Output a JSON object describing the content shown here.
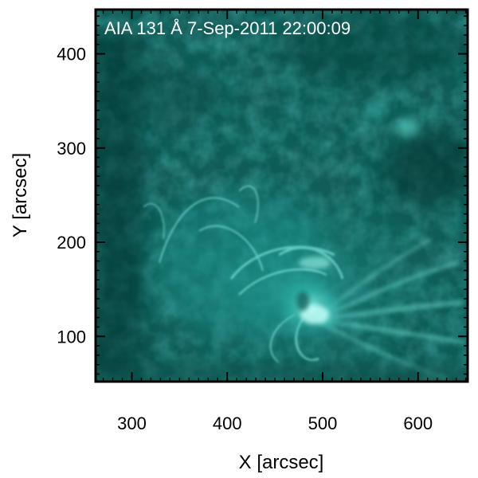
{
  "image": {
    "title": "AIA 131 Å  7-Sep-2011 22:00:09",
    "xlabel": "X [arcsec]",
    "ylabel": "Y [arcsec]",
    "colormap_base": "#0b5a55",
    "colormap_highlight": "#a8fff6",
    "x_range": [
      262,
      652
    ],
    "y_range": [
      52,
      447
    ],
    "x_ticks": [
      {
        "value": 300,
        "label": "300"
      },
      {
        "value": 400,
        "label": "400"
      },
      {
        "value": 500,
        "label": "500"
      },
      {
        "value": 600,
        "label": "600"
      }
    ],
    "y_ticks": [
      {
        "value": 100,
        "label": "100"
      },
      {
        "value": 200,
        "label": "200"
      },
      {
        "value": 300,
        "label": "300"
      },
      {
        "value": 400,
        "label": "400"
      }
    ]
  }
}
